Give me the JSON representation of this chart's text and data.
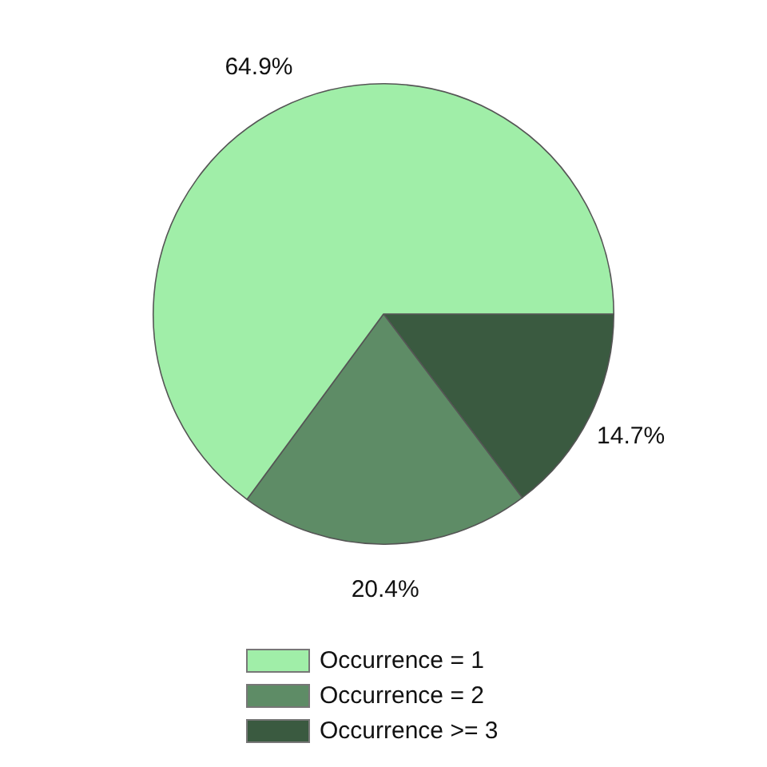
{
  "chart_data": {
    "type": "pie",
    "categories": [
      "Occurrence = 1",
      "Occurrence = 2",
      "Occurrence >= 3"
    ],
    "values": [
      64.9,
      20.4,
      14.7
    ],
    "colors": [
      "#a0eea8",
      "#5e8c66",
      "#3a5a40"
    ],
    "value_labels": [
      "64.9%",
      "20.4%",
      "14.7%"
    ],
    "legend": "bottom"
  }
}
